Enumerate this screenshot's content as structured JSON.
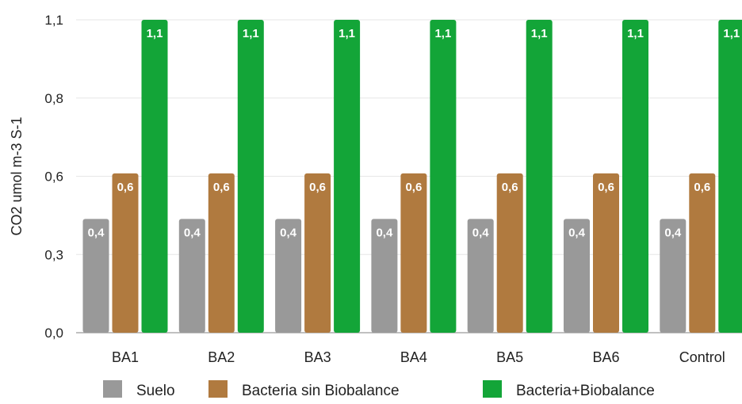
{
  "chart_data": {
    "type": "bar",
    "title": "",
    "xlabel": "",
    "ylabel": "CO2 umol m-3 S-1",
    "ylim": [
      0,
      1.1
    ],
    "yticks": [
      {
        "value": 0.0,
        "label": "0,0"
      },
      {
        "value": 0.275,
        "label": "0,3"
      },
      {
        "value": 0.55,
        "label": "0,6"
      },
      {
        "value": 0.825,
        "label": "0,8"
      },
      {
        "value": 1.1,
        "label": "1,1"
      }
    ],
    "categories": [
      "BA1",
      "BA2",
      "BA3",
      "BA4",
      "BA5",
      "BA6",
      "Control"
    ],
    "series": [
      {
        "name": "Suelo",
        "color": "#999999",
        "values": [
          0.4,
          0.4,
          0.4,
          0.4,
          0.4,
          0.4,
          0.4
        ],
        "labels": [
          "0,4",
          "0,4",
          "0,4",
          "0,4",
          "0,4",
          "0,4",
          "0,4"
        ]
      },
      {
        "name": "Bacteria sin Biobalance",
        "color": "#B07A3F",
        "values": [
          0.56,
          0.56,
          0.56,
          0.56,
          0.56,
          0.56,
          0.56
        ],
        "labels": [
          "0,6",
          "0,6",
          "0,6",
          "0,6",
          "0,6",
          "0,6",
          "0,6"
        ]
      },
      {
        "name": "Bacteria+Biobalance",
        "color": "#13A538",
        "values": [
          1.1,
          1.1,
          1.1,
          1.1,
          1.1,
          1.1,
          1.1
        ],
        "labels": [
          "1,1",
          "1,1",
          "1,1",
          "1,1",
          "1,1",
          "1,1",
          "1,1"
        ]
      }
    ],
    "grid": true,
    "legend_position": "bottom"
  }
}
